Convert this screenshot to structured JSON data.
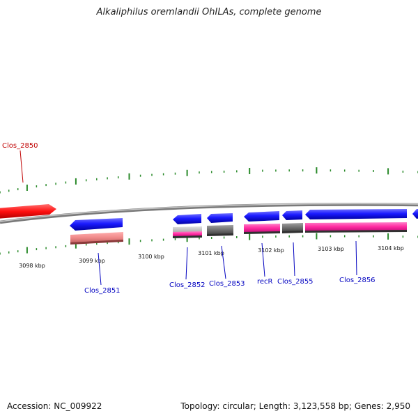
{
  "title": "Alkaliphilus oremlandii OhILAs, complete genome",
  "footer": {
    "accession": "Accession: NC_009922",
    "summary": "Topology: circular; Length: 3,123,558 bp; Genes: 2,950"
  },
  "colors": {
    "backbone": "#888888",
    "tick": "#2a8a2a",
    "highlight_gene": "#ff1f1f",
    "forward_gene": "#1f1fff",
    "feature_pink": "#ff2aa0",
    "feature_salmon": "#f28a8a",
    "feature_gray": "#707070",
    "label_blue": "#0000c0",
    "label_red": "#c00000"
  },
  "scale_labels": [
    "3098 kbp",
    "3099 kbp",
    "3100 kbp",
    "3101 kbp",
    "3102 kbp",
    "3103 kbp",
    "3104 kbp"
  ],
  "genes": [
    {
      "label": "Clos_2850",
      "color": "red"
    },
    {
      "label": "Clos_2851",
      "color": "blue"
    },
    {
      "label": "Clos_2852",
      "color": "blue"
    },
    {
      "label": "Clos_2853",
      "color": "blue"
    },
    {
      "label": "recR",
      "color": "blue"
    },
    {
      "label": "Clos_2855",
      "color": "blue"
    },
    {
      "label": "Clos_2856",
      "color": "blue"
    }
  ]
}
